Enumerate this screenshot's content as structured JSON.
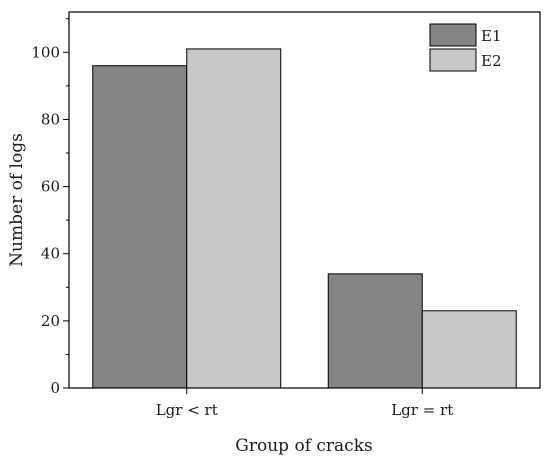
{
  "chart_data": {
    "type": "bar",
    "categories": [
      "Lgr < rt",
      "Lgr = rt"
    ],
    "series": [
      {
        "name": "E1",
        "values": [
          96,
          34
        ],
        "color": "#858585"
      },
      {
        "name": "E2",
        "values": [
          101,
          23
        ],
        "color": "#c8c8c8"
      }
    ],
    "xlabel": "Group of cracks",
    "ylabel": "Number of logs",
    "ylim": [
      0,
      112
    ],
    "yticks": [
      0,
      20,
      40,
      60,
      80,
      100
    ],
    "grid": false,
    "legend_position": "top-right"
  }
}
